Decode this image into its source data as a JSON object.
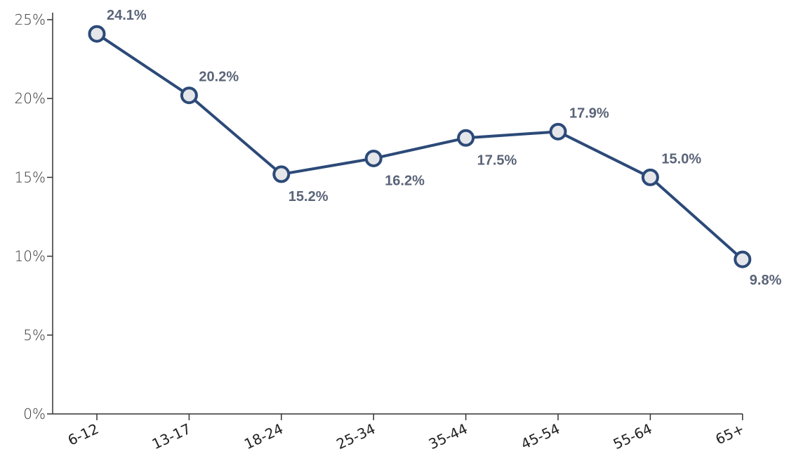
{
  "chart_data": {
    "type": "line",
    "categories": [
      "6-12",
      "13-17",
      "18-24",
      "25-34",
      "35-44",
      "45-54",
      "55-64",
      "65+"
    ],
    "series": [
      {
        "values": [
          24.1,
          20.2,
          15.2,
          16.2,
          17.5,
          17.9,
          15.0,
          9.8
        ],
        "labels": [
          "24.1%",
          "20.2%",
          "15.2%",
          "16.2%",
          "17.5%",
          "17.9%",
          "15.0%",
          "9.8%"
        ]
      }
    ],
    "yticks": [
      0,
      5,
      10,
      15,
      20,
      25
    ],
    "ytick_labels": [
      "0%",
      "5%",
      "10%",
      "15%",
      "20%",
      "25%"
    ],
    "ylim": [
      0,
      25
    ],
    "title": "",
    "xlabel": "",
    "ylabel": "",
    "grid": false,
    "colors": {
      "line": "#2c4a78",
      "marker_fill": "#e4e6ea",
      "marker_stroke": "#2c4a78",
      "axis": "#333333",
      "data_label": "#5a6478"
    }
  }
}
